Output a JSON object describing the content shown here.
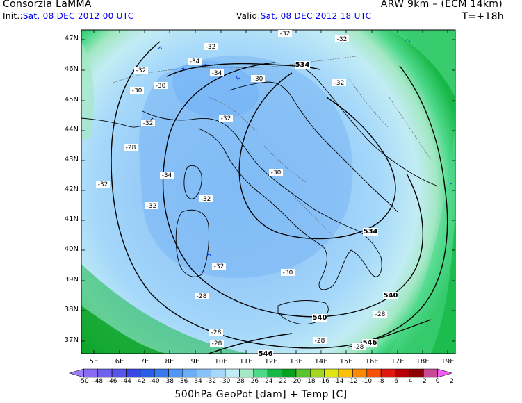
{
  "header": {
    "org": "Consorzia LaMMA",
    "model": "ARW 9km – (ECM 14km)",
    "init_label": "Init.:",
    "init_value": "Sat, 08 DEC 2012  00 UTC",
    "valid_label": "Valid:",
    "valid_value": "Sat, 08 DEC 2012  18 UTC",
    "lead": "T=+18h"
  },
  "map": {
    "lat_labels": [
      "47N",
      "46N",
      "45N",
      "44N",
      "43N",
      "42N",
      "41N",
      "40N",
      "39N",
      "38N",
      "37N"
    ],
    "lon_labels": [
      "5E",
      "6E",
      "7E",
      "8E",
      "9E",
      "10E",
      "11E",
      "12E",
      "13E",
      "14E",
      "15E",
      "16E",
      "17E",
      "18E",
      "19E"
    ],
    "geopot_labels": [
      "534",
      "534",
      "540",
      "540",
      "546",
      "546"
    ],
    "temp_labels": [
      "-32",
      "-32",
      "-32",
      "-34",
      "-34",
      "-32",
      "-30",
      "-30",
      "-30",
      "-32",
      "-32",
      "-32",
      "-28",
      "-32",
      "-34",
      "-30",
      "-32",
      "-32",
      "-32",
      "-30",
      "-28",
      "-28",
      "-28",
      "-28",
      "-28",
      "-28"
    ]
  },
  "colorbar": {
    "labels": [
      "-50",
      "-48",
      "-46",
      "-44",
      "-42",
      "-40",
      "-38",
      "-36",
      "-34",
      "-32",
      "-30",
      "-28",
      "-26",
      "-24",
      "-22",
      "-20",
      "-18",
      "-16",
      "-14",
      "-12",
      "-10",
      "-8",
      "-6",
      "-4",
      "-2",
      "0",
      "2"
    ],
    "colors": [
      "#9b7fff",
      "#8a6cf4",
      "#7060ee",
      "#5656e8",
      "#3a46e6",
      "#2a5ee8",
      "#3a78ee",
      "#5096f4",
      "#6aaef6",
      "#88c2f8",
      "#a6d8fa",
      "#c2ecf4",
      "#a4e8c4",
      "#4ed88a",
      "#18b848",
      "#08a020",
      "#58c430",
      "#a4d820",
      "#e0e410",
      "#fcc008",
      "#fc8804",
      "#f85008",
      "#e01810",
      "#b80008",
      "#8c0004",
      "#c84898",
      "#f45cf4"
    ],
    "title": "500hPa GeoPot [dam] + Temp [C]"
  }
}
